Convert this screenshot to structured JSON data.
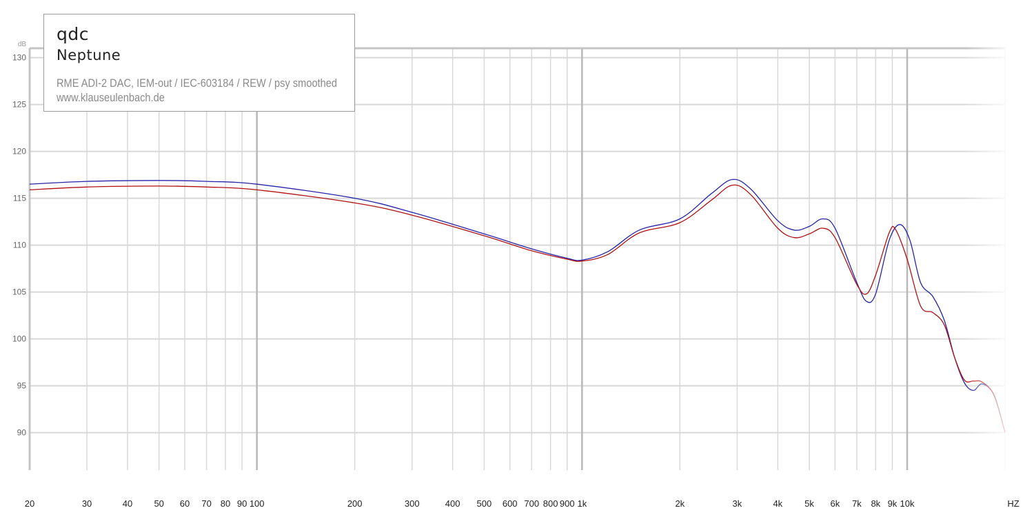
{
  "legend": {
    "brand": "qdc",
    "model": "Neptune",
    "line1": "RME ADI-2 DAC, IEM-out / IEC-603184 / REW / psy smoothed",
    "line2": "www.klauseulenbach.de"
  },
  "colors": {
    "series1": "#2424a8",
    "series2": "#b01010",
    "grid": "#d8d8d8",
    "grid_major": "#b8b8b8"
  },
  "chart_data": {
    "type": "line",
    "title": "",
    "xscale": "log",
    "xlim": [
      20,
      20000
    ],
    "ylim": [
      86,
      131
    ],
    "y_unit": "dB",
    "x_unit": "HZ",
    "grid": true,
    "y_ticks": [
      90,
      95,
      100,
      105,
      110,
      115,
      120,
      125,
      130
    ],
    "x_ticks": [
      {
        "v": 20,
        "label": "20"
      },
      {
        "v": 30,
        "label": "30"
      },
      {
        "v": 40,
        "label": "40"
      },
      {
        "v": 50,
        "label": "50"
      },
      {
        "v": 60,
        "label": "60"
      },
      {
        "v": 70,
        "label": "70"
      },
      {
        "v": 80,
        "label": "80"
      },
      {
        "v": 90,
        "label": "90"
      },
      {
        "v": 100,
        "label": "100"
      },
      {
        "v": 200,
        "label": "200"
      },
      {
        "v": 300,
        "label": "300"
      },
      {
        "v": 400,
        "label": "400"
      },
      {
        "v": 500,
        "label": "500"
      },
      {
        "v": 600,
        "label": "600"
      },
      {
        "v": 700,
        "label": "700"
      },
      {
        "v": 800,
        "label": "800"
      },
      {
        "v": 900,
        "label": "900"
      },
      {
        "v": 1000,
        "label": "1k"
      },
      {
        "v": 2000,
        "label": "2k"
      },
      {
        "v": 3000,
        "label": "3k"
      },
      {
        "v": 4000,
        "label": "4k"
      },
      {
        "v": 5000,
        "label": "5k"
      },
      {
        "v": 6000,
        "label": "6k"
      },
      {
        "v": 7000,
        "label": "7k"
      },
      {
        "v": 8000,
        "label": "8k"
      },
      {
        "v": 9000,
        "label": "9k"
      },
      {
        "v": 10000,
        "label": "10k"
      }
    ],
    "series": [
      {
        "color": "#2424a8",
        "points": [
          [
            20,
            116.5
          ],
          [
            30,
            116.8
          ],
          [
            50,
            116.9
          ],
          [
            70,
            116.8
          ],
          [
            100,
            116.5
          ],
          [
            200,
            115.0
          ],
          [
            300,
            113.5
          ],
          [
            500,
            111.2
          ],
          [
            700,
            109.6
          ],
          [
            900,
            108.6
          ],
          [
            1000,
            108.4
          ],
          [
            1200,
            109.3
          ],
          [
            1500,
            111.6
          ],
          [
            2000,
            112.8
          ],
          [
            2500,
            115.5
          ],
          [
            2900,
            117.0
          ],
          [
            3300,
            116.0
          ],
          [
            4000,
            112.6
          ],
          [
            4500,
            111.6
          ],
          [
            5000,
            112.0
          ],
          [
            5500,
            112.8
          ],
          [
            6000,
            111.8
          ],
          [
            7000,
            106.0
          ],
          [
            7500,
            104.0
          ],
          [
            8000,
            104.8
          ],
          [
            8800,
            110.5
          ],
          [
            9500,
            112.2
          ],
          [
            10200,
            110.5
          ],
          [
            11000,
            106.0
          ],
          [
            12000,
            104.5
          ],
          [
            13000,
            102.0
          ],
          [
            14000,
            98.0
          ],
          [
            15000,
            95.3
          ],
          [
            16000,
            94.5
          ],
          [
            17000,
            95.2
          ],
          [
            18500,
            94.0
          ],
          [
            20000,
            90.0
          ]
        ]
      },
      {
        "color": "#b01010",
        "points": [
          [
            20,
            115.9
          ],
          [
            30,
            116.2
          ],
          [
            50,
            116.3
          ],
          [
            70,
            116.2
          ],
          [
            100,
            115.9
          ],
          [
            200,
            114.5
          ],
          [
            300,
            113.2
          ],
          [
            500,
            111.0
          ],
          [
            700,
            109.4
          ],
          [
            900,
            108.5
          ],
          [
            1000,
            108.3
          ],
          [
            1200,
            109.0
          ],
          [
            1500,
            111.3
          ],
          [
            2000,
            112.4
          ],
          [
            2500,
            114.8
          ],
          [
            2900,
            116.4
          ],
          [
            3300,
            115.4
          ],
          [
            4000,
            111.8
          ],
          [
            4500,
            110.8
          ],
          [
            5000,
            111.2
          ],
          [
            5500,
            111.8
          ],
          [
            6000,
            110.8
          ],
          [
            7000,
            105.8
          ],
          [
            7500,
            104.8
          ],
          [
            8000,
            106.8
          ],
          [
            8800,
            111.3
          ],
          [
            9200,
            111.7
          ],
          [
            10000,
            108.5
          ],
          [
            11000,
            103.5
          ],
          [
            12000,
            102.8
          ],
          [
            13000,
            101.5
          ],
          [
            14000,
            98.0
          ],
          [
            15000,
            95.6
          ],
          [
            16000,
            95.5
          ],
          [
            17000,
            95.4
          ],
          [
            18500,
            94.0
          ],
          [
            20000,
            90.0
          ]
        ]
      }
    ]
  }
}
